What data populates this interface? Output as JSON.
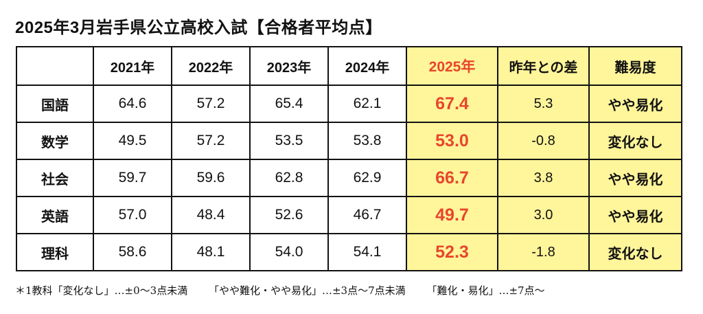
{
  "title": "2025年3月岩手県公立高校入試【合格者平均点】",
  "table": {
    "headers": [
      "",
      "2021年",
      "2022年",
      "2023年",
      "2024年",
      "2025年",
      "昨年との差",
      "難易度"
    ],
    "rows": [
      {
        "subject": "国語",
        "y2021": "64.6",
        "y2022": "57.2",
        "y2023": "65.4",
        "y2024": "62.1",
        "y2025": "67.4",
        "diff": "5.3",
        "level": "やや易化"
      },
      {
        "subject": "数学",
        "y2021": "49.5",
        "y2022": "57.2",
        "y2023": "53.5",
        "y2024": "53.8",
        "y2025": "53.0",
        "diff": "-0.8",
        "level": "変化なし"
      },
      {
        "subject": "社会",
        "y2021": "59.7",
        "y2022": "59.6",
        "y2023": "62.8",
        "y2024": "62.9",
        "y2025": "66.7",
        "diff": "3.8",
        "level": "やや易化"
      },
      {
        "subject": "英語",
        "y2021": "57.0",
        "y2022": "48.4",
        "y2023": "52.6",
        "y2024": "46.7",
        "y2025": "49.7",
        "diff": "3.0",
        "level": "やや易化"
      },
      {
        "subject": "理科",
        "y2021": "58.6",
        "y2022": "48.1",
        "y2023": "54.0",
        "y2024": "54.1",
        "y2025": "52.3",
        "diff": "-1.8",
        "level": "変化なし"
      }
    ]
  },
  "colors": {
    "highlight_bg": "#fff59a",
    "highlight_text": "#e8452c"
  },
  "footnote": {
    "part1": "＊1教科「変化なし」…±0〜3点未満",
    "part2": "「やや難化・やや易化」…±3点〜7点未満",
    "part3": "「難化・易化」…±7点〜"
  }
}
